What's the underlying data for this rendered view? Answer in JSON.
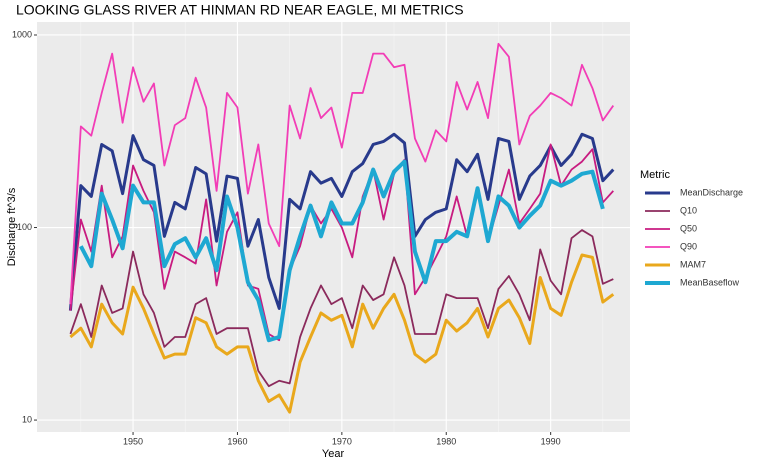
{
  "chart_data": {
    "type": "line",
    "title": "LOOKING GLASS RIVER AT HINMAN RD NEAR EAGLE, MI  METRICS",
    "x_label": "Year",
    "y_label": "Discharge ft^3/s",
    "legend_title": "Metric",
    "legend": "right",
    "log_y": true,
    "grid": true,
    "xlim": [
      1940.8,
      1997.6
    ],
    "xticks": [
      1950,
      1960,
      1970,
      1980,
      1990
    ],
    "ylim": [
      8.67,
      1168
    ],
    "yticks": [
      10,
      100,
      1000
    ],
    "x": [
      1944,
      1945,
      1946,
      1947,
      1948,
      1949,
      1950,
      1951,
      1952,
      1953,
      1954,
      1955,
      1956,
      1957,
      1958,
      1959,
      1960,
      1961,
      1962,
      1963,
      1964,
      1965,
      1966,
      1967,
      1968,
      1969,
      1970,
      1971,
      1972,
      1973,
      1974,
      1975,
      1976,
      1977,
      1978,
      1979,
      1980,
      1981,
      1982,
      1983,
      1984,
      1985,
      1986,
      1987,
      1988,
      1989,
      1990,
      1991,
      1992,
      1993,
      1994,
      1995,
      1996
    ],
    "series": [
      {
        "name": "MeanDischarge",
        "color": "#283a8c",
        "linewidth": 3,
        "values": [
          37,
          165,
          145,
          270,
          250,
          150,
          300,
          225,
          210,
          90,
          135,
          125,
          205,
          190,
          85,
          185,
          180,
          80,
          110,
          55,
          38,
          140,
          125,
          195,
          170,
          180,
          145,
          195,
          215,
          270,
          280,
          305,
          275,
          90,
          110,
          120,
          125,
          225,
          195,
          240,
          140,
          290,
          280,
          140,
          185,
          210,
          265,
          210,
          240,
          305,
          290,
          175,
          200
        ]
      },
      {
        "name": "Q10",
        "color": "#8b2a5c",
        "linewidth": 1.8,
        "values": [
          28,
          40,
          27,
          50,
          36,
          38,
          75,
          45,
          36,
          24,
          27,
          27,
          40,
          43,
          28,
          30,
          30,
          30,
          18,
          15,
          16,
          15.5,
          27,
          38,
          50,
          40,
          43,
          30,
          50,
          42,
          45,
          70,
          50,
          28,
          28,
          28,
          45,
          43,
          43,
          43,
          30,
          48,
          56,
          45,
          33,
          77,
          53,
          45,
          88,
          97,
          90,
          51,
          54
        ]
      },
      {
        "name": "Q50",
        "color": "#c81b80",
        "linewidth": 1.8,
        "values": [
          37,
          110,
          75,
          165,
          70,
          90,
          210,
          155,
          120,
          48,
          75,
          70,
          65,
          140,
          50,
          95,
          120,
          50,
          48,
          28,
          26,
          60,
          80,
          130,
          105,
          125,
          100,
          70,
          145,
          200,
          110,
          190,
          225,
          45,
          55,
          70,
          90,
          145,
          90,
          160,
          85,
          130,
          200,
          105,
          125,
          150,
          270,
          165,
          200,
          220,
          255,
          135,
          155
        ]
      },
      {
        "name": "Q90",
        "color": "#f23db6",
        "linewidth": 1.8,
        "values": [
          40,
          335,
          300,
          500,
          800,
          350,
          680,
          450,
          560,
          210,
          340,
          370,
          600,
          420,
          155,
          500,
          420,
          150,
          270,
          105,
          80,
          430,
          290,
          530,
          370,
          420,
          260,
          500,
          500,
          800,
          800,
          680,
          700,
          290,
          220,
          320,
          280,
          570,
          410,
          570,
          370,
          900,
          770,
          270,
          380,
          430,
          500,
          470,
          430,
          700,
          530,
          360,
          430
        ]
      },
      {
        "name": "MAM7",
        "color": "#e9a81c",
        "linewidth": 3,
        "values": [
          27,
          30,
          24,
          40,
          32,
          28,
          49,
          38,
          28,
          21,
          22,
          22,
          34,
          32,
          24,
          22,
          24,
          24,
          16,
          12.5,
          13.5,
          11,
          20,
          27,
          36,
          33,
          35,
          24,
          40,
          30,
          38,
          45,
          33,
          22,
          20,
          22,
          33,
          29,
          32,
          38,
          27,
          38,
          42,
          34,
          25,
          55,
          38,
          35,
          52,
          72,
          70,
          41,
          45
        ]
      },
      {
        "name": "MeanBaseflow",
        "color": "#1ea8d2",
        "linewidth": 4,
        "values": [
          null,
          80,
          63,
          150,
          110,
          78,
          165,
          135,
          135,
          63,
          82,
          88,
          70,
          88,
          60,
          145,
          100,
          52,
          42,
          26,
          27,
          60,
          90,
          130,
          90,
          135,
          105,
          105,
          135,
          200,
          145,
          195,
          220,
          75,
          52,
          85,
          85,
          95,
          90,
          160,
          85,
          145,
          130,
          100,
          115,
          130,
          175,
          165,
          175,
          190,
          195,
          125,
          null
        ]
      }
    ]
  }
}
